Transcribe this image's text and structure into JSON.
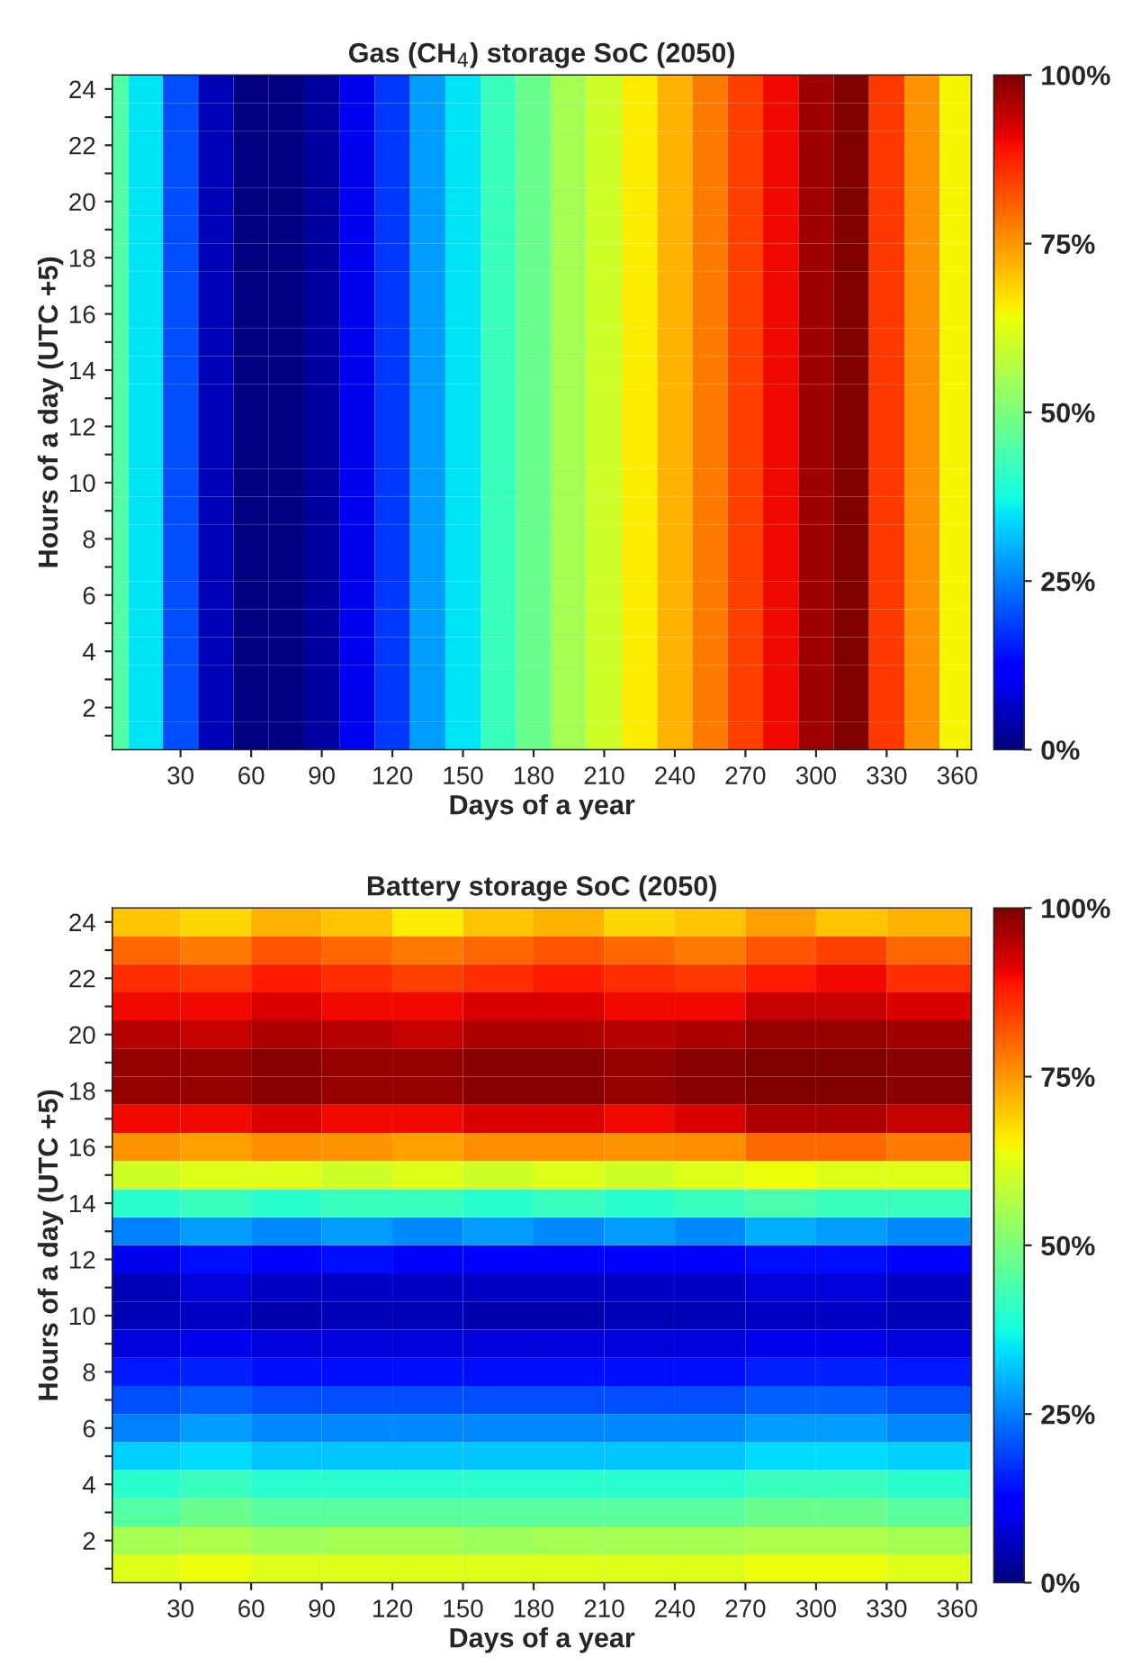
{
  "chart_data": [
    {
      "type": "heatmap",
      "title": "Gas (CH$_{4}$) storage SoC (2050)",
      "xlabel": "Days of a year",
      "ylabel": "Hours of a day (UTC +5)",
      "x": [
        1,
        15,
        30,
        45,
        60,
        75,
        90,
        105,
        120,
        135,
        150,
        165,
        180,
        195,
        210,
        225,
        240,
        255,
        270,
        285,
        300,
        315,
        330,
        345,
        360
      ],
      "xlim": [
        1,
        366
      ],
      "xticks": [
        30,
        60,
        90,
        120,
        150,
        180,
        210,
        240,
        270,
        300,
        330,
        360
      ],
      "y_categories": [
        "24",
        null,
        "22",
        null,
        "20",
        null,
        "18",
        null,
        "16",
        null,
        "14",
        null,
        "12",
        null,
        "10",
        null,
        "8",
        null,
        "6",
        null,
        "4",
        null,
        "2",
        null
      ],
      "cells": [
        [
          45,
          35,
          20,
          5,
          0,
          0,
          3,
          10,
          18,
          28,
          35,
          42,
          48,
          55,
          60,
          66,
          72,
          78,
          84,
          90,
          97,
          100,
          85,
          75,
          65
        ],
        [
          45,
          35,
          20,
          5,
          0,
          0,
          3,
          10,
          18,
          28,
          35,
          42,
          48,
          55,
          60,
          66,
          72,
          78,
          84,
          90,
          97,
          100,
          85,
          75,
          65
        ],
        [
          45,
          35,
          20,
          5,
          0,
          0,
          3,
          10,
          18,
          28,
          35,
          42,
          48,
          55,
          60,
          66,
          72,
          78,
          84,
          90,
          97,
          100,
          85,
          75,
          65
        ],
        [
          45,
          35,
          20,
          5,
          0,
          0,
          3,
          10,
          18,
          28,
          35,
          42,
          48,
          55,
          60,
          66,
          72,
          78,
          84,
          90,
          97,
          100,
          85,
          75,
          65
        ],
        [
          45,
          35,
          20,
          5,
          0,
          0,
          3,
          10,
          18,
          28,
          35,
          42,
          48,
          55,
          60,
          66,
          72,
          78,
          84,
          90,
          97,
          100,
          85,
          75,
          65
        ],
        [
          45,
          35,
          20,
          5,
          0,
          0,
          3,
          10,
          18,
          28,
          35,
          42,
          48,
          55,
          60,
          66,
          72,
          78,
          84,
          90,
          97,
          100,
          85,
          75,
          65
        ],
        [
          45,
          35,
          20,
          5,
          0,
          0,
          3,
          10,
          18,
          28,
          35,
          42,
          48,
          55,
          60,
          66,
          72,
          78,
          84,
          90,
          97,
          100,
          85,
          75,
          65
        ],
        [
          45,
          35,
          20,
          5,
          0,
          0,
          3,
          10,
          18,
          28,
          35,
          42,
          48,
          55,
          60,
          66,
          72,
          78,
          84,
          90,
          97,
          100,
          85,
          75,
          65
        ],
        [
          45,
          35,
          20,
          5,
          0,
          0,
          3,
          10,
          18,
          28,
          35,
          42,
          48,
          55,
          60,
          66,
          72,
          78,
          84,
          90,
          97,
          100,
          85,
          75,
          65
        ],
        [
          45,
          35,
          20,
          5,
          0,
          0,
          3,
          10,
          18,
          28,
          35,
          42,
          48,
          55,
          60,
          66,
          72,
          78,
          84,
          90,
          97,
          100,
          85,
          75,
          65
        ],
        [
          45,
          35,
          20,
          5,
          0,
          0,
          3,
          10,
          18,
          28,
          35,
          42,
          48,
          55,
          60,
          66,
          72,
          78,
          84,
          90,
          97,
          100,
          85,
          75,
          65
        ],
        [
          45,
          35,
          20,
          5,
          0,
          0,
          3,
          10,
          18,
          28,
          35,
          42,
          48,
          55,
          60,
          66,
          72,
          78,
          84,
          90,
          97,
          100,
          85,
          75,
          65
        ],
        [
          45,
          35,
          20,
          5,
          0,
          0,
          3,
          10,
          18,
          28,
          35,
          42,
          48,
          55,
          60,
          66,
          72,
          78,
          84,
          90,
          97,
          100,
          85,
          75,
          65
        ],
        [
          45,
          35,
          20,
          5,
          0,
          0,
          3,
          10,
          18,
          28,
          35,
          42,
          48,
          55,
          60,
          66,
          72,
          78,
          84,
          90,
          97,
          100,
          85,
          75,
          65
        ],
        [
          45,
          35,
          20,
          5,
          0,
          0,
          3,
          10,
          18,
          28,
          35,
          42,
          48,
          55,
          60,
          66,
          72,
          78,
          84,
          90,
          97,
          100,
          85,
          75,
          65
        ],
        [
          45,
          35,
          20,
          5,
          0,
          0,
          3,
          10,
          18,
          28,
          35,
          42,
          48,
          55,
          60,
          66,
          72,
          78,
          84,
          90,
          97,
          100,
          85,
          75,
          65
        ],
        [
          45,
          35,
          20,
          5,
          0,
          0,
          3,
          10,
          18,
          28,
          35,
          42,
          48,
          55,
          60,
          66,
          72,
          78,
          84,
          90,
          97,
          100,
          85,
          75,
          65
        ],
        [
          45,
          35,
          20,
          5,
          0,
          0,
          3,
          10,
          18,
          28,
          35,
          42,
          48,
          55,
          60,
          66,
          72,
          78,
          84,
          90,
          97,
          100,
          85,
          75,
          65
        ],
        [
          45,
          35,
          20,
          5,
          0,
          0,
          3,
          10,
          18,
          28,
          35,
          42,
          48,
          55,
          60,
          66,
          72,
          78,
          84,
          90,
          97,
          100,
          85,
          75,
          65
        ],
        [
          45,
          35,
          20,
          5,
          0,
          0,
          3,
          10,
          18,
          28,
          35,
          42,
          48,
          55,
          60,
          66,
          72,
          78,
          84,
          90,
          97,
          100,
          85,
          75,
          65
        ],
        [
          45,
          35,
          20,
          5,
          0,
          0,
          3,
          10,
          18,
          28,
          35,
          42,
          48,
          55,
          60,
          66,
          72,
          78,
          84,
          90,
          97,
          100,
          85,
          75,
          65
        ],
        [
          45,
          35,
          20,
          5,
          0,
          0,
          3,
          10,
          18,
          28,
          35,
          42,
          48,
          55,
          60,
          66,
          72,
          78,
          84,
          90,
          97,
          100,
          85,
          75,
          65
        ],
        [
          45,
          35,
          20,
          5,
          0,
          0,
          3,
          10,
          18,
          28,
          35,
          42,
          48,
          55,
          60,
          66,
          72,
          78,
          84,
          90,
          97,
          100,
          85,
          75,
          65
        ],
        [
          45,
          35,
          20,
          5,
          0,
          0,
          3,
          10,
          18,
          28,
          35,
          42,
          48,
          55,
          60,
          66,
          72,
          78,
          84,
          90,
          97,
          100,
          85,
          75,
          65
        ]
      ],
      "clim": [
        0,
        100
      ],
      "cticks": [
        {
          "value": 0,
          "label": "0%"
        },
        {
          "value": 25,
          "label": "25%"
        },
        {
          "value": 50,
          "label": "50%"
        },
        {
          "value": 75,
          "label": "75%"
        },
        {
          "value": 100,
          "label": "100%"
        }
      ]
    },
    {
      "type": "heatmap",
      "title": "Battery storage SoC (2050)",
      "xlabel": "Days of a year",
      "ylabel": "Hours of a day (UTC +5)",
      "x": [
        15,
        45,
        75,
        105,
        135,
        165,
        195,
        225,
        255,
        285,
        315,
        345
      ],
      "xlim": [
        1,
        366
      ],
      "xticks": [
        30,
        60,
        90,
        120,
        150,
        180,
        210,
        240,
        270,
        300,
        330,
        360
      ],
      "y_categories": [
        "24",
        null,
        "22",
        null,
        "20",
        null,
        "18",
        null,
        "16",
        null,
        "14",
        null,
        "12",
        null,
        "10",
        null,
        "8",
        null,
        "6",
        null,
        "4",
        null,
        "2",
        null
      ],
      "cells": [
        [
          70,
          68,
          72,
          70,
          66,
          70,
          72,
          68,
          70,
          74,
          70,
          72
        ],
        [
          80,
          78,
          82,
          80,
          78,
          80,
          82,
          80,
          78,
          82,
          84,
          80
        ],
        [
          86,
          85,
          88,
          86,
          84,
          86,
          88,
          86,
          85,
          88,
          90,
          86
        ],
        [
          90,
          90,
          92,
          90,
          90,
          92,
          92,
          90,
          90,
          94,
          94,
          92
        ],
        [
          95,
          94,
          96,
          95,
          94,
          96,
          96,
          95,
          96,
          98,
          98,
          97
        ],
        [
          98,
          98,
          99,
          98,
          98,
          99,
          99,
          98,
          99,
          100,
          100,
          99
        ],
        [
          98,
          98,
          99,
          98,
          98,
          99,
          99,
          98,
          99,
          100,
          100,
          99
        ],
        [
          90,
          90,
          92,
          90,
          90,
          92,
          92,
          90,
          92,
          96,
          96,
          94
        ],
        [
          75,
          74,
          76,
          75,
          74,
          76,
          76,
          75,
          76,
          80,
          80,
          78
        ],
        [
          60,
          62,
          62,
          60,
          62,
          60,
          62,
          60,
          62,
          64,
          62,
          62
        ],
        [
          40,
          42,
          40,
          42,
          42,
          40,
          42,
          40,
          42,
          44,
          42,
          42
        ],
        [
          25,
          28,
          26,
          28,
          26,
          28,
          26,
          28,
          26,
          30,
          28,
          26
        ],
        [
          10,
          14,
          12,
          14,
          12,
          12,
          12,
          12,
          12,
          14,
          14,
          12
        ],
        [
          5,
          8,
          6,
          6,
          6,
          6,
          6,
          6,
          6,
          8,
          8,
          6
        ],
        [
          5,
          6,
          4,
          5,
          5,
          4,
          4,
          5,
          5,
          6,
          6,
          5
        ],
        [
          8,
          10,
          8,
          8,
          8,
          8,
          8,
          8,
          8,
          10,
          10,
          8
        ],
        [
          15,
          16,
          14,
          14,
          14,
          14,
          14,
          14,
          14,
          16,
          16,
          15
        ],
        [
          20,
          22,
          20,
          20,
          20,
          20,
          20,
          20,
          20,
          22,
          22,
          20
        ],
        [
          25,
          28,
          26,
          26,
          26,
          26,
          26,
          26,
          26,
          28,
          28,
          26
        ],
        [
          33,
          34,
          32,
          32,
          32,
          32,
          32,
          32,
          32,
          34,
          34,
          33
        ],
        [
          40,
          42,
          40,
          40,
          40,
          40,
          40,
          40,
          40,
          42,
          42,
          40
        ],
        [
          45,
          48,
          46,
          46,
          46,
          46,
          46,
          46,
          46,
          48,
          48,
          46
        ],
        [
          55,
          56,
          54,
          55,
          55,
          54,
          55,
          55,
          55,
          56,
          56,
          55
        ],
        [
          62,
          64,
          62,
          62,
          62,
          62,
          62,
          62,
          62,
          64,
          64,
          62
        ]
      ],
      "clim": [
        0,
        100
      ],
      "cticks": [
        {
          "value": 0,
          "label": "0%"
        },
        {
          "value": 25,
          "label": "25%"
        },
        {
          "value": 50,
          "label": "50%"
        },
        {
          "value": 75,
          "label": "75%"
        },
        {
          "value": 100,
          "label": "100%"
        }
      ]
    }
  ]
}
